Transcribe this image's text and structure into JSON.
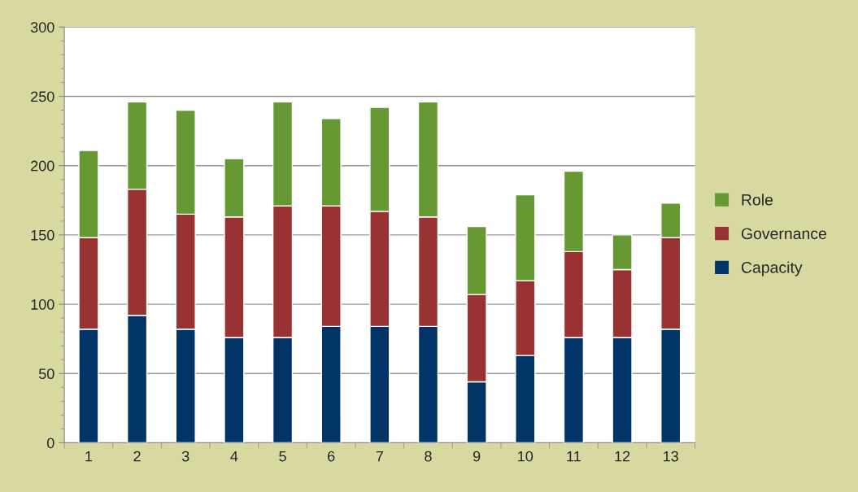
{
  "chart_data": {
    "type": "bar",
    "stacked": true,
    "categories": [
      "1",
      "2",
      "3",
      "4",
      "5",
      "6",
      "7",
      "8",
      "9",
      "10",
      "11",
      "12",
      "13"
    ],
    "series": [
      {
        "name": "Capacity",
        "color": "#003366",
        "values": [
          82,
          92,
          82,
          76,
          76,
          84,
          84,
          84,
          44,
          63,
          76,
          76,
          82
        ]
      },
      {
        "name": "Governance",
        "color": "#993333",
        "values": [
          66,
          91,
          83,
          87,
          95,
          87,
          83,
          79,
          63,
          54,
          62,
          49,
          66
        ]
      },
      {
        "name": "Role",
        "color": "#669933",
        "values": [
          63,
          63,
          75,
          42,
          75,
          63,
          75,
          83,
          49,
          62,
          58,
          25,
          25
        ]
      }
    ],
    "ylim": [
      0,
      300
    ],
    "yticks": [
      0,
      50,
      100,
      150,
      200,
      250,
      300
    ],
    "grid": "y",
    "legend": "right"
  }
}
